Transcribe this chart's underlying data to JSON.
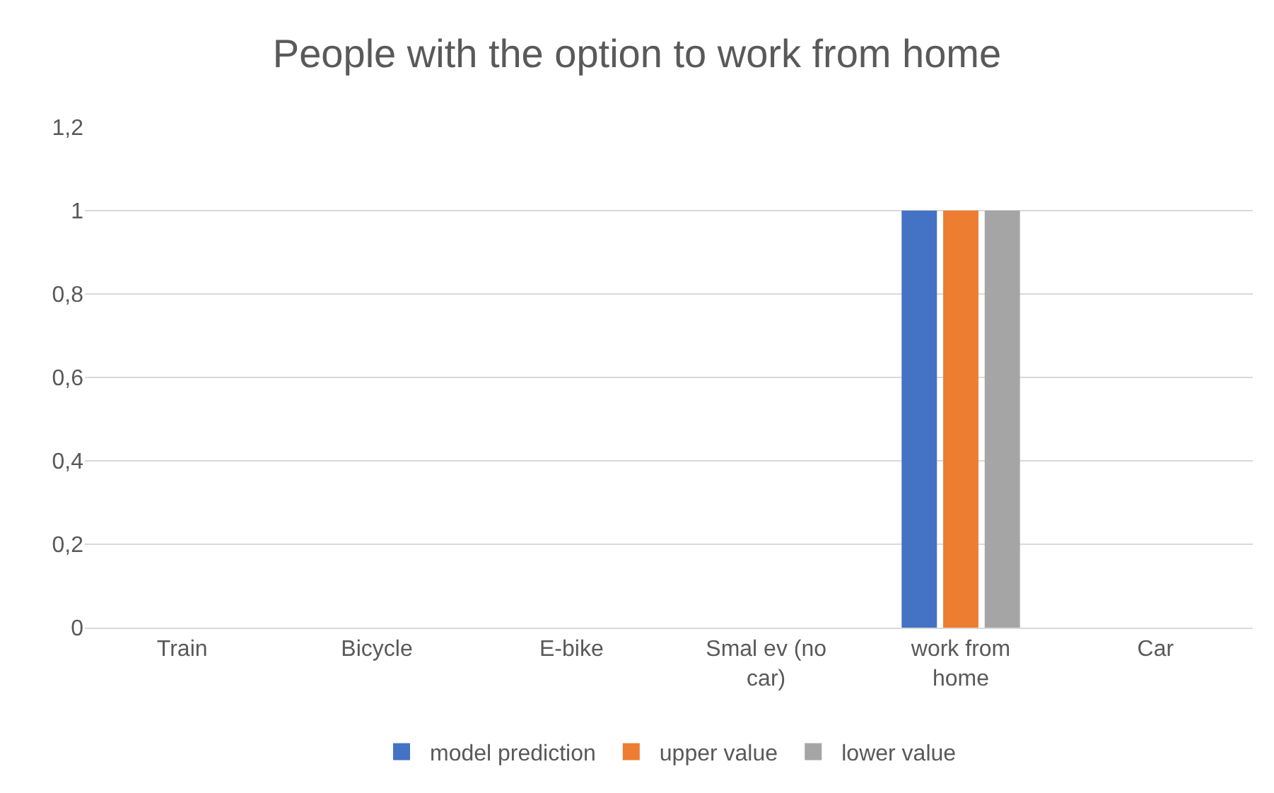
{
  "chart_data": {
    "type": "bar",
    "title": "People with the option to work from home",
    "categories": [
      "Train",
      "Bicycle",
      "E-bike",
      "Smal ev (no car)",
      "work from home",
      "Car"
    ],
    "series": [
      {
        "name": "model prediction",
        "color": "#4472c4",
        "values": [
          0,
          0,
          0,
          0,
          1,
          0
        ]
      },
      {
        "name": "upper value",
        "color": "#ed7d31",
        "values": [
          0,
          0,
          0,
          0,
          1,
          0
        ]
      },
      {
        "name": "lower value",
        "color": "#a5a5a5",
        "values": [
          0,
          0,
          0,
          0,
          1,
          0
        ]
      }
    ],
    "ylim": [
      0,
      1.2
    ],
    "yticks": [
      {
        "value": 0,
        "label": "0"
      },
      {
        "value": 0.2,
        "label": "0,2"
      },
      {
        "value": 0.4,
        "label": "0,4"
      },
      {
        "value": 0.6,
        "label": "0,6"
      },
      {
        "value": 0.8,
        "label": "0,8"
      },
      {
        "value": 1,
        "label": "1"
      },
      {
        "value": 1.2,
        "label": "1,2"
      }
    ],
    "grid": "y",
    "legend": "bottom"
  }
}
